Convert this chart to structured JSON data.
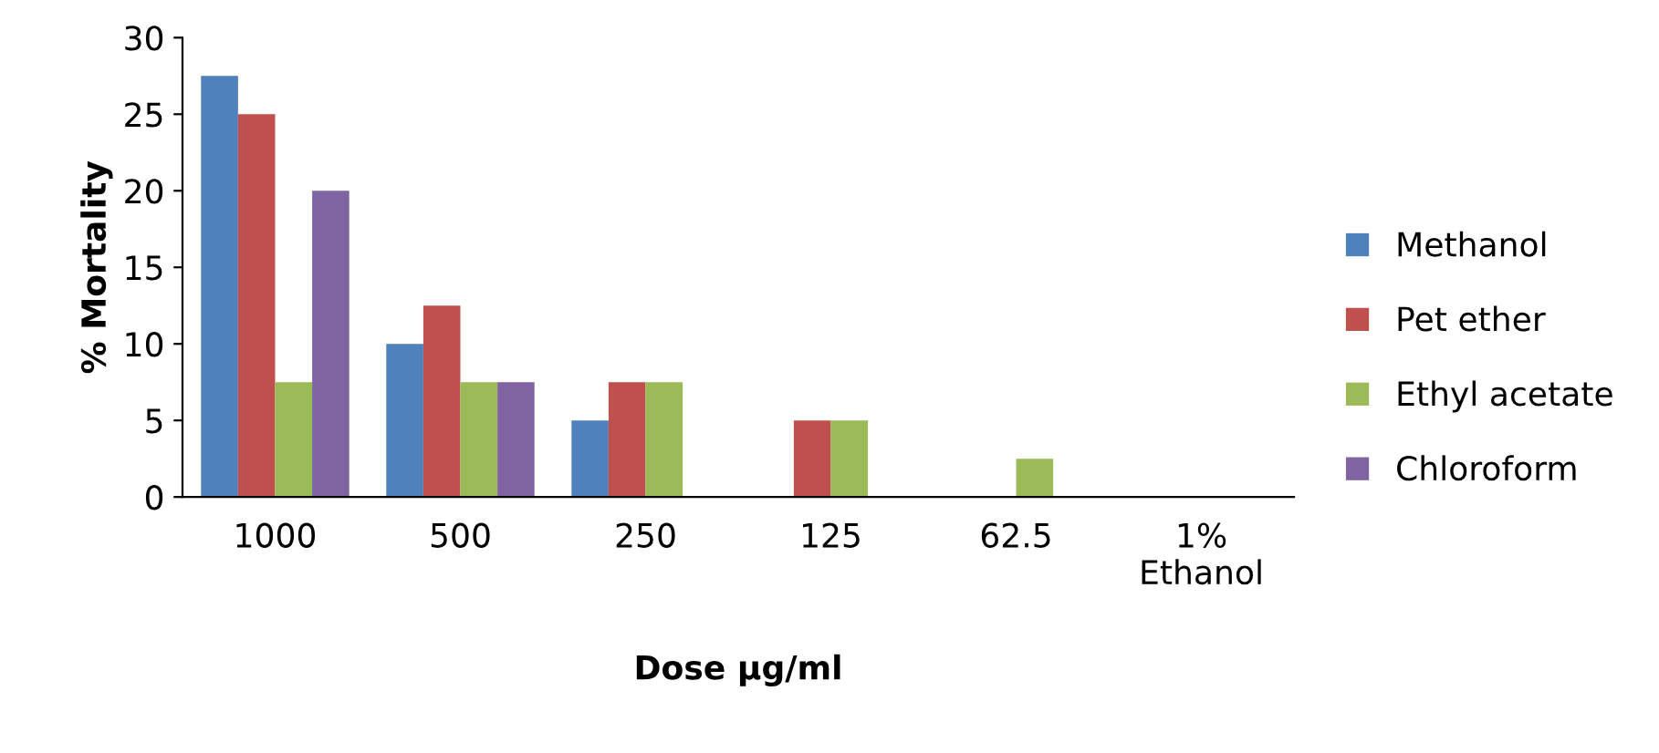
{
  "chart_data": {
    "type": "bar",
    "xlabel": "Dose µg/ml",
    "ylabel": "% Mortality",
    "categories": [
      "1000",
      "500",
      "250",
      "125",
      "62.5",
      "1%\nEthanol"
    ],
    "series": [
      {
        "name": "Methanol",
        "color": "#4f81bd",
        "values": [
          27.5,
          10,
          5,
          0,
          0,
          0
        ]
      },
      {
        "name": "Pet ether",
        "color": "#c0504d",
        "values": [
          25,
          12.5,
          7.5,
          5,
          0,
          0
        ]
      },
      {
        "name": "Ethyl acetate",
        "color": "#9bbb59",
        "values": [
          7.5,
          7.5,
          7.5,
          5,
          2.5,
          0
        ]
      },
      {
        "name": "Chloroform",
        "color": "#8064a2",
        "values": [
          20,
          7.5,
          0,
          0,
          0,
          0
        ]
      }
    ],
    "ylim": [
      0,
      30
    ],
    "yticks": [
      0,
      5,
      10,
      15,
      20,
      25,
      30
    ],
    "grid": false,
    "legend": "right"
  }
}
